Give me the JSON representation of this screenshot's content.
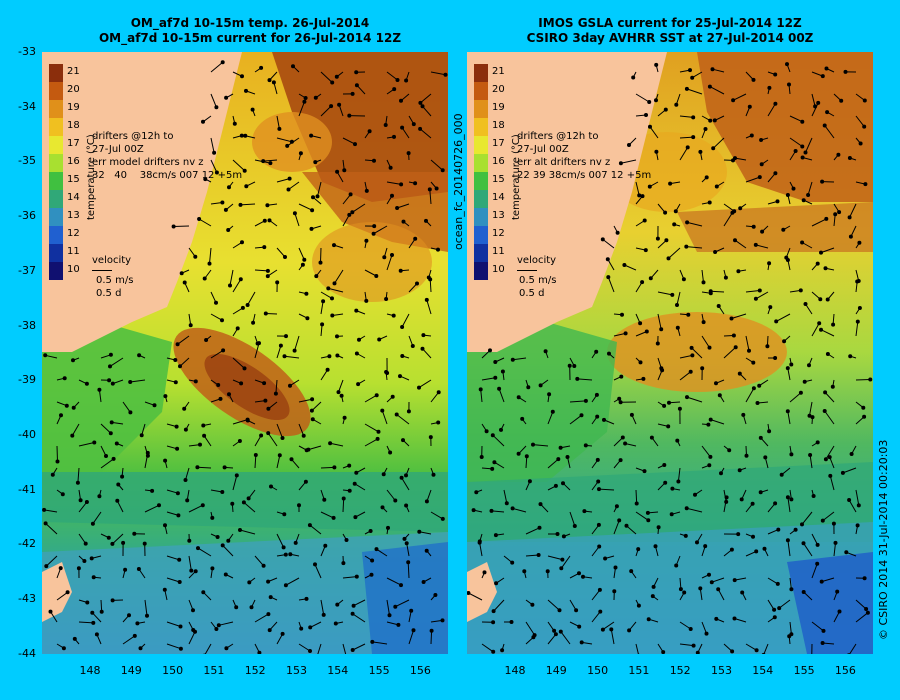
{
  "left_panel": {
    "title_line1": "OM_af7d 10-15m temp. 26-Jul-2014",
    "title_line2": "OM_af7d 10-15m current for 26-Jul-2014 12Z",
    "drifters_text": "drifters @12h to\n27-Jul 00Z\nerr model drifters nv z\n32   40    38cm/s 007 12 +5m",
    "velocity_label": "velocity",
    "velocity_scale": "0.5 m/s\n0.5 d",
    "colorbar_title": "temperature (°C)"
  },
  "right_panel": {
    "title_line1": "IMOS GSLA current for 25-Jul-2014 12Z",
    "title_line2": "CSIRO 3day AVHRR SST at 27-Jul-2014 00Z",
    "drifters_text": "drifters @12h to\n27-Jul 00Z\nerr alt drifters nv z\n22 39 38cm/s 007 12 +5m",
    "velocity_label": "velocity",
    "velocity_scale": "0.5 m/s\n0.5 d",
    "colorbar_title": "temperature (°C)"
  },
  "colorbar_ticks": [
    "21",
    "20",
    "19",
    "18",
    "17",
    "16",
    "15",
    "14",
    "13",
    "12",
    "11",
    "10"
  ],
  "colorbar_colors": [
    "#8b2e0c",
    "#c45a10",
    "#e0901a",
    "#f0c020",
    "#e8e830",
    "#a8e030",
    "#40c040",
    "#30a878",
    "#3090c0",
    "#2060d0",
    "#1030a0",
    "#101070"
  ],
  "lat_ticks": [
    "-33",
    "-34",
    "-35",
    "-36",
    "-37",
    "-38",
    "-39",
    "-40",
    "-41",
    "-42",
    "-43",
    "-44"
  ],
  "lon_ticks": [
    "148",
    "149",
    "150",
    "151",
    "152",
    "153",
    "154",
    "155",
    "156"
  ],
  "side_label": "ocean_fc_20140726_000",
  "footer_label": "© CSIRO 2014   31-Jul-2014 00:20:03",
  "colors": {
    "land": "#f8c49c",
    "background": "#00ccff"
  }
}
